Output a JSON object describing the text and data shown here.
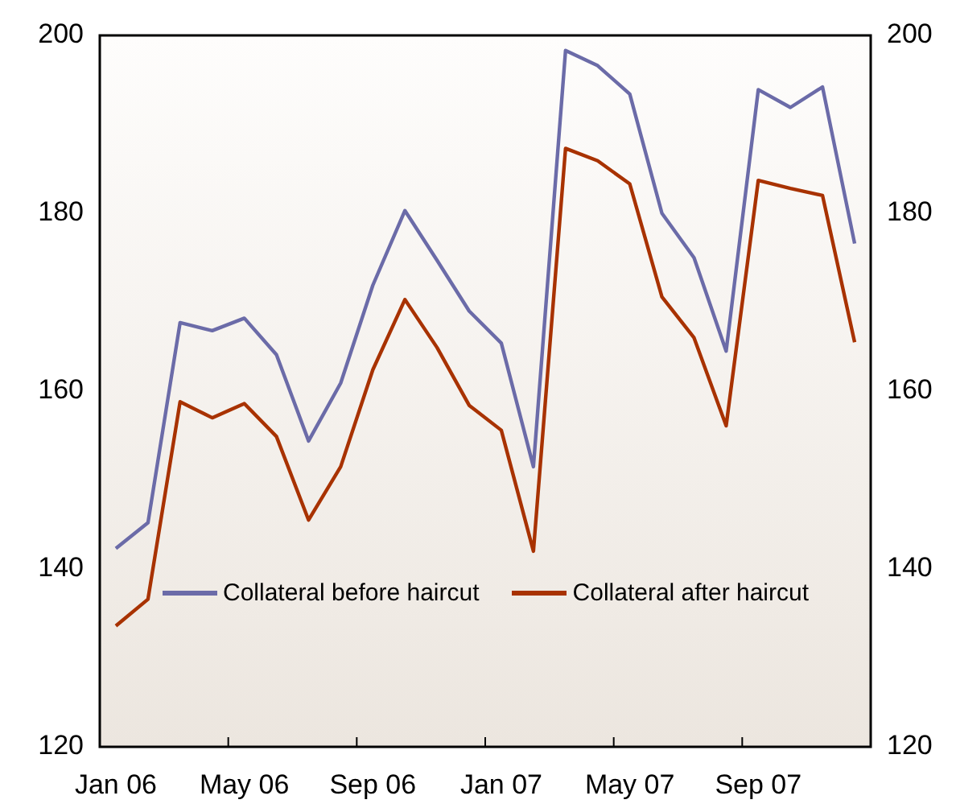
{
  "chart_data": {
    "type": "line",
    "categories": [
      "Jan 06",
      null,
      null,
      null,
      "May 06",
      null,
      null,
      null,
      "Sep 06",
      null,
      null,
      null,
      "Jan 07",
      null,
      null,
      null,
      "May 07",
      null,
      null,
      null,
      "Sep 07",
      null,
      null,
      null
    ],
    "series": [
      {
        "name": "Collateral before haircut",
        "color": "#6b6ba8",
        "values": [
          142.3,
          145.2,
          167.7,
          166.8,
          168.2,
          164.1,
          154.4,
          160.9,
          171.9,
          180.3,
          174.7,
          169.0,
          165.4,
          151.5,
          198.3,
          196.6,
          193.4,
          180.0,
          175.0,
          164.5,
          193.9,
          191.9,
          194.2,
          176.6
        ]
      },
      {
        "name": "Collateral after haircut",
        "color": "#a83200",
        "values": [
          133.6,
          136.6,
          158.8,
          157.0,
          158.6,
          154.9,
          145.5,
          151.5,
          162.4,
          170.3,
          164.9,
          158.4,
          155.6,
          142.0,
          187.3,
          185.9,
          183.3,
          170.6,
          166.0,
          156.1,
          183.7,
          182.8,
          182.0,
          165.5
        ]
      }
    ],
    "ylim": [
      120,
      200
    ],
    "yticks": [
      120,
      140,
      160,
      180,
      200
    ],
    "y2lim": [
      120,
      200
    ],
    "y2ticks": [
      120,
      140,
      160,
      180,
      200
    ],
    "grid": false,
    "legend": "bottom",
    "marker": "none",
    "line_style": "solid"
  }
}
